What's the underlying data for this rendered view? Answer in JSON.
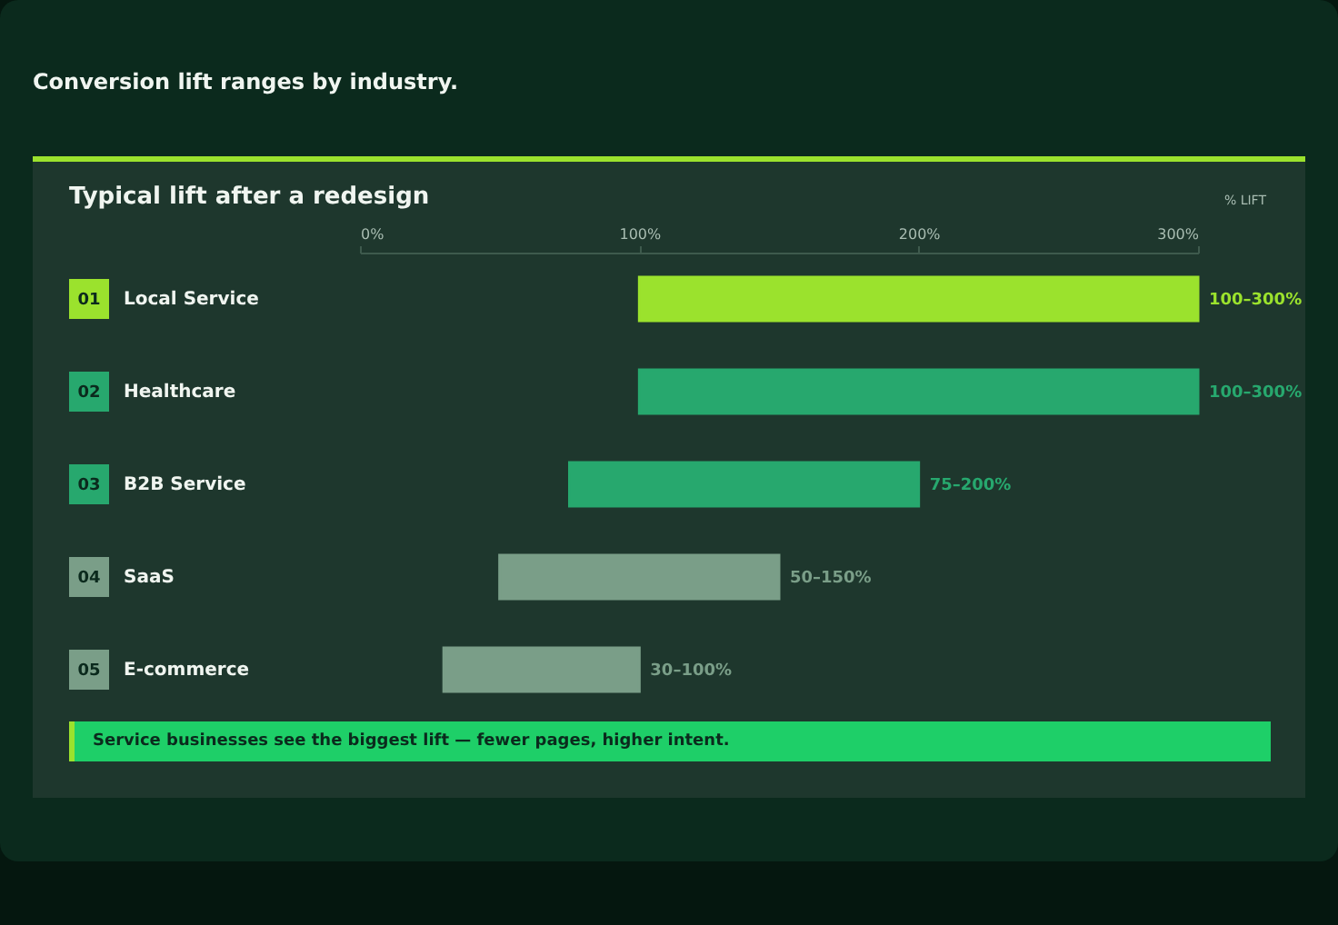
{
  "chart_data": {
    "type": "bar",
    "orientation": "horizontal",
    "title": "Conversion lift ranges by industry.",
    "subtitle": "Typical lift after a redesign",
    "xlabel": "% LIFT",
    "categories": [
      "01 Local Service",
      "02 Healthcare",
      "03 B2B Service",
      "04 SaaS",
      "05 E-commerce"
    ],
    "base": [
      100,
      100,
      75,
      50,
      30
    ],
    "values": [
      200,
      200,
      125,
      100,
      70
    ],
    "colors": [
      "#9be22d",
      "#27a86e",
      "#27a86e",
      "#7a9e88",
      "#7a9e88"
    ],
    "xlim": [
      0,
      300
    ],
    "xticks": [
      {
        "value": 0,
        "label": "0%"
      },
      {
        "value": 100,
        "label": "100%"
      },
      {
        "value": 200,
        "label": "200%"
      },
      {
        "value": 300,
        "label": "300%"
      }
    ],
    "annotations": [
      "Service businesses see the biggest lift — fewer pages, higher intent.",
      {
        "text": "100–300%",
        "x": 300,
        "y": "01 Local Service"
      },
      {
        "text": "100–300%",
        "x": 300,
        "y": "02 Healthcare"
      },
      {
        "text": "75–200%",
        "x": 200,
        "y": "03 B2B Service"
      },
      {
        "text": "50–150%",
        "x": 150,
        "y": "04 SaaS"
      },
      {
        "text": "30–100%",
        "x": 100,
        "y": "05 E-commerce"
      }
    ]
  }
}
